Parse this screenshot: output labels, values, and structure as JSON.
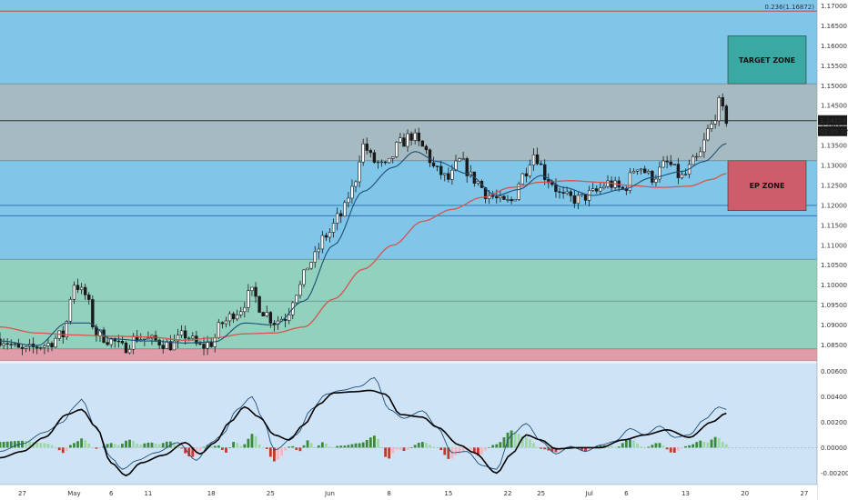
{
  "chart_data": [
    {
      "type": "candlestick",
      "panel": "price",
      "ylim": [
        1.081,
        1.1715
      ],
      "y_ticks": [
        "1.17000",
        "1.16500",
        "1.16000",
        "1.15500",
        "1.15000",
        "1.14500",
        "1.14000",
        "1.13500",
        "1.13000",
        "1.12500",
        "1.12000",
        "1.11500",
        "1.11000",
        "1.10500",
        "1.10000",
        "1.09500",
        "1.09000",
        "1.08500"
      ],
      "y_tick_values": [
        1.17,
        1.165,
        1.16,
        1.155,
        1.15,
        1.145,
        1.14,
        1.135,
        1.13,
        1.125,
        1.12,
        1.115,
        1.11,
        1.105,
        1.1,
        1.095,
        1.09,
        1.085
      ],
      "x_ticks": [
        "27",
        "May",
        "6",
        "11",
        "18",
        "25",
        "Jun",
        "8",
        "15",
        "22",
        "25",
        "Jul",
        "6",
        "13",
        "20",
        "27"
      ],
      "x_tick_index": [
        6,
        20,
        30,
        40,
        57,
        73,
        89,
        105,
        121,
        137,
        146,
        159,
        169,
        185,
        201,
        217
      ],
      "current_price": "1.14124",
      "current_price_value": 1.14124,
      "countdown": "02:05:32",
      "fib_label": "0.236(1.16872)",
      "fib_value": 1.16872,
      "horizontal_levels": [
        1.16872,
        1.14124,
        1.12,
        1.1174
      ],
      "grid": false,
      "colors": {
        "bull_candle": "#1e1e1e",
        "bear_candle": "#1e1e1e",
        "ma_fast": "#1f4e79",
        "ma_slow": "#d9534f",
        "zone_blue": "#5bb7dc",
        "zone_green": "#8fd1b3",
        "zone_grey": "#a7b3b8",
        "zone_red": "#d88b96",
        "target_box": "#3aa8a3",
        "ep_box": "#cd5d6b"
      },
      "zones": [
        {
          "from": 1.1715,
          "to": 1.1505,
          "color": "blue"
        },
        {
          "from": 1.1505,
          "to": 1.1312,
          "color": "grey"
        },
        {
          "from": 1.1312,
          "to": 1.1174,
          "color": "blue"
        },
        {
          "from": 1.1174,
          "to": 1.1065,
          "color": "blue"
        },
        {
          "from": 1.1065,
          "to": 1.096,
          "color": "green"
        },
        {
          "from": 1.096,
          "to": 1.084,
          "color": "green"
        },
        {
          "from": 1.084,
          "to": 1.081,
          "color": "red"
        }
      ],
      "boxes": [
        {
          "label": "TARGET ZONE",
          "from": 1.1505,
          "to": 1.1625,
          "color": "teal"
        },
        {
          "label": "EP ZONE",
          "from": 1.1187,
          "to": 1.1312,
          "color": "red"
        }
      ],
      "anchors": [
        [
          0,
          1.0865
        ],
        [
          6,
          1.0835
        ],
        [
          12,
          1.085
        ],
        [
          17,
          1.0875
        ],
        [
          20,
          1.1005
        ],
        [
          23,
          1.0975
        ],
        [
          26,
          1.0878
        ],
        [
          30,
          1.0862
        ],
        [
          33,
          1.0842
        ],
        [
          37,
          1.0868
        ],
        [
          42,
          1.086
        ],
        [
          46,
          1.085
        ],
        [
          50,
          1.0875
        ],
        [
          54,
          1.0845
        ],
        [
          57,
          1.0855
        ],
        [
          60,
          1.0905
        ],
        [
          64,
          1.0935
        ],
        [
          68,
          1.098
        ],
        [
          71,
          1.0935
        ],
        [
          74,
          1.091
        ],
        [
          77,
          1.092
        ],
        [
          80,
          1.0985
        ],
        [
          84,
          1.106
        ],
        [
          88,
          1.1125
        ],
        [
          92,
          1.1175
        ],
        [
          95,
          1.124
        ],
        [
          98,
          1.135
        ],
        [
          101,
          1.131
        ],
        [
          104,
          1.1295
        ],
        [
          108,
          1.1355
        ],
        [
          111,
          1.1375
        ],
        [
          114,
          1.1345
        ],
        [
          118,
          1.1285
        ],
        [
          121,
          1.1265
        ],
        [
          124,
          1.131
        ],
        [
          128,
          1.1265
        ],
        [
          132,
          1.1225
        ],
        [
          136,
          1.1205
        ],
        [
          138,
          1.121
        ],
        [
          141,
          1.1275
        ],
        [
          144,
          1.133
        ],
        [
          148,
          1.1265
        ],
        [
          152,
          1.122
        ],
        [
          156,
          1.1215
        ],
        [
          160,
          1.123
        ],
        [
          164,
          1.1255
        ],
        [
          168,
          1.124
        ],
        [
          172,
          1.13
        ],
        [
          176,
          1.127
        ],
        [
          180,
          1.1305
        ],
        [
          184,
          1.127
        ],
        [
          188,
          1.1315
        ],
        [
          192,
          1.14
        ],
        [
          194,
          1.1455
        ],
        [
          196,
          1.1415
        ]
      ],
      "ma_fast_anchors": [
        [
          0,
          1.086
        ],
        [
          10,
          1.0848
        ],
        [
          18,
          1.0905
        ],
        [
          24,
          1.0905
        ],
        [
          30,
          1.0865
        ],
        [
          40,
          1.086
        ],
        [
          50,
          1.0855
        ],
        [
          58,
          1.0858
        ],
        [
          66,
          1.0905
        ],
        [
          74,
          1.09
        ],
        [
          82,
          1.096
        ],
        [
          90,
          1.11
        ],
        [
          98,
          1.1235
        ],
        [
          106,
          1.1295
        ],
        [
          112,
          1.1335
        ],
        [
          118,
          1.131
        ],
        [
          126,
          1.128
        ],
        [
          134,
          1.1225
        ],
        [
          140,
          1.124
        ],
        [
          146,
          1.1275
        ],
        [
          152,
          1.1245
        ],
        [
          160,
          1.1225
        ],
        [
          168,
          1.124
        ],
        [
          176,
          1.127
        ],
        [
          184,
          1.1285
        ],
        [
          190,
          1.131
        ],
        [
          196,
          1.1355
        ]
      ],
      "ma_slow_anchors": [
        [
          0,
          1.0895
        ],
        [
          10,
          1.088
        ],
        [
          20,
          1.0875
        ],
        [
          30,
          1.0872
        ],
        [
          40,
          1.087
        ],
        [
          50,
          1.0862
        ],
        [
          58,
          1.0868
        ],
        [
          66,
          1.0878
        ],
        [
          74,
          1.088
        ],
        [
          82,
          1.0895
        ],
        [
          90,
          1.0965
        ],
        [
          98,
          1.104
        ],
        [
          106,
          1.11
        ],
        [
          114,
          1.116
        ],
        [
          122,
          1.119
        ],
        [
          130,
          1.122
        ],
        [
          138,
          1.1245
        ],
        [
          146,
          1.1258
        ],
        [
          154,
          1.1262
        ],
        [
          162,
          1.1258
        ],
        [
          170,
          1.125
        ],
        [
          178,
          1.1245
        ],
        [
          186,
          1.1248
        ],
        [
          192,
          1.1265
        ],
        [
          196,
          1.128
        ]
      ]
    },
    {
      "type": "macd",
      "panel": "indicator",
      "ylim": [
        -0.0029,
        0.0066
      ],
      "y_ticks": [
        "0.00600",
        "0.00400",
        "0.00200",
        "0.00000",
        "-0.00200"
      ],
      "y_tick_values": [
        0.006,
        0.004,
        0.002,
        0.0,
        -0.002
      ],
      "macd_anchors": [
        [
          0,
          -0.0003
        ],
        [
          6,
          0.0003
        ],
        [
          12,
          0.0012
        ],
        [
          17,
          0.002
        ],
        [
          20,
          0.0032
        ],
        [
          22,
          0.0038
        ],
        [
          26,
          0.0015
        ],
        [
          30,
          -0.0008
        ],
        [
          33,
          -0.0017
        ],
        [
          37,
          -0.001
        ],
        [
          42,
          -0.0004
        ],
        [
          48,
          0.0004
        ],
        [
          53,
          -0.001
        ],
        [
          57,
          0.0004
        ],
        [
          60,
          0.001
        ],
        [
          64,
          0.003
        ],
        [
          68,
          0.004
        ],
        [
          71,
          0.0022
        ],
        [
          74,
          -0.0002
        ],
        [
          80,
          0.001
        ],
        [
          84,
          0.003
        ],
        [
          88,
          0.0042
        ],
        [
          92,
          0.0045
        ],
        [
          97,
          0.0048
        ],
        [
          101,
          0.0055
        ],
        [
          105,
          0.003
        ],
        [
          109,
          0.0023
        ],
        [
          114,
          0.0029
        ],
        [
          118,
          0.0016
        ],
        [
          122,
          -0.0004
        ],
        [
          126,
          -0.0003
        ],
        [
          130,
          -0.0014
        ],
        [
          134,
          -0.0017
        ],
        [
          138,
          0.001
        ],
        [
          142,
          0.0019
        ],
        [
          146,
          0.0005
        ],
        [
          150,
          -0.0005
        ],
        [
          154,
          0.0001
        ],
        [
          158,
          -0.0003
        ],
        [
          162,
          0.0002
        ],
        [
          166,
          0.0005
        ],
        [
          170,
          0.0015
        ],
        [
          174,
          0.001
        ],
        [
          178,
          0.0017
        ],
        [
          182,
          0.0008
        ],
        [
          186,
          0.001
        ],
        [
          190,
          0.0022
        ],
        [
          194,
          0.0032
        ],
        [
          196,
          0.003
        ]
      ],
      "signal_anchors": [
        [
          0,
          -0.0008
        ],
        [
          6,
          -0.0003
        ],
        [
          12,
          0.0008
        ],
        [
          18,
          0.0026
        ],
        [
          22,
          0.003
        ],
        [
          26,
          0.0016
        ],
        [
          30,
          -0.0012
        ],
        [
          34,
          -0.0022
        ],
        [
          38,
          -0.0012
        ],
        [
          44,
          -0.0006
        ],
        [
          50,
          0.0004
        ],
        [
          54,
          -0.0005
        ],
        [
          58,
          0.0004
        ],
        [
          62,
          0.002
        ],
        [
          66,
          0.0032
        ],
        [
          70,
          0.0024
        ],
        [
          74,
          0.001
        ],
        [
          78,
          0.0006
        ],
        [
          82,
          0.0018
        ],
        [
          86,
          0.0034
        ],
        [
          90,
          0.0043
        ],
        [
          96,
          0.0044
        ],
        [
          100,
          0.0045
        ],
        [
          104,
          0.0042
        ],
        [
          108,
          0.0026
        ],
        [
          114,
          0.0024
        ],
        [
          118,
          0.0016
        ],
        [
          124,
          0.0002
        ],
        [
          128,
          -0.0004
        ],
        [
          134,
          -0.002
        ],
        [
          138,
          -0.0005
        ],
        [
          142,
          0.001
        ],
        [
          146,
          0.0006
        ],
        [
          150,
          -0.0001
        ],
        [
          156,
          0.0
        ],
        [
          162,
          0.0
        ],
        [
          168,
          0.0006
        ],
        [
          174,
          0.001
        ],
        [
          180,
          0.0014
        ],
        [
          186,
          0.0008
        ],
        [
          192,
          0.002
        ],
        [
          196,
          0.0027
        ]
      ],
      "colors": {
        "macd_line": "#1f4e79",
        "signal_line": "#000000",
        "hist_pos_strong": "#3a8a3a",
        "hist_pos_weak": "#9fd6a6",
        "hist_neg_strong": "#c0392b",
        "hist_neg_weak": "#f2b8bd",
        "panel_bg": "#cfe3f7"
      }
    }
  ]
}
